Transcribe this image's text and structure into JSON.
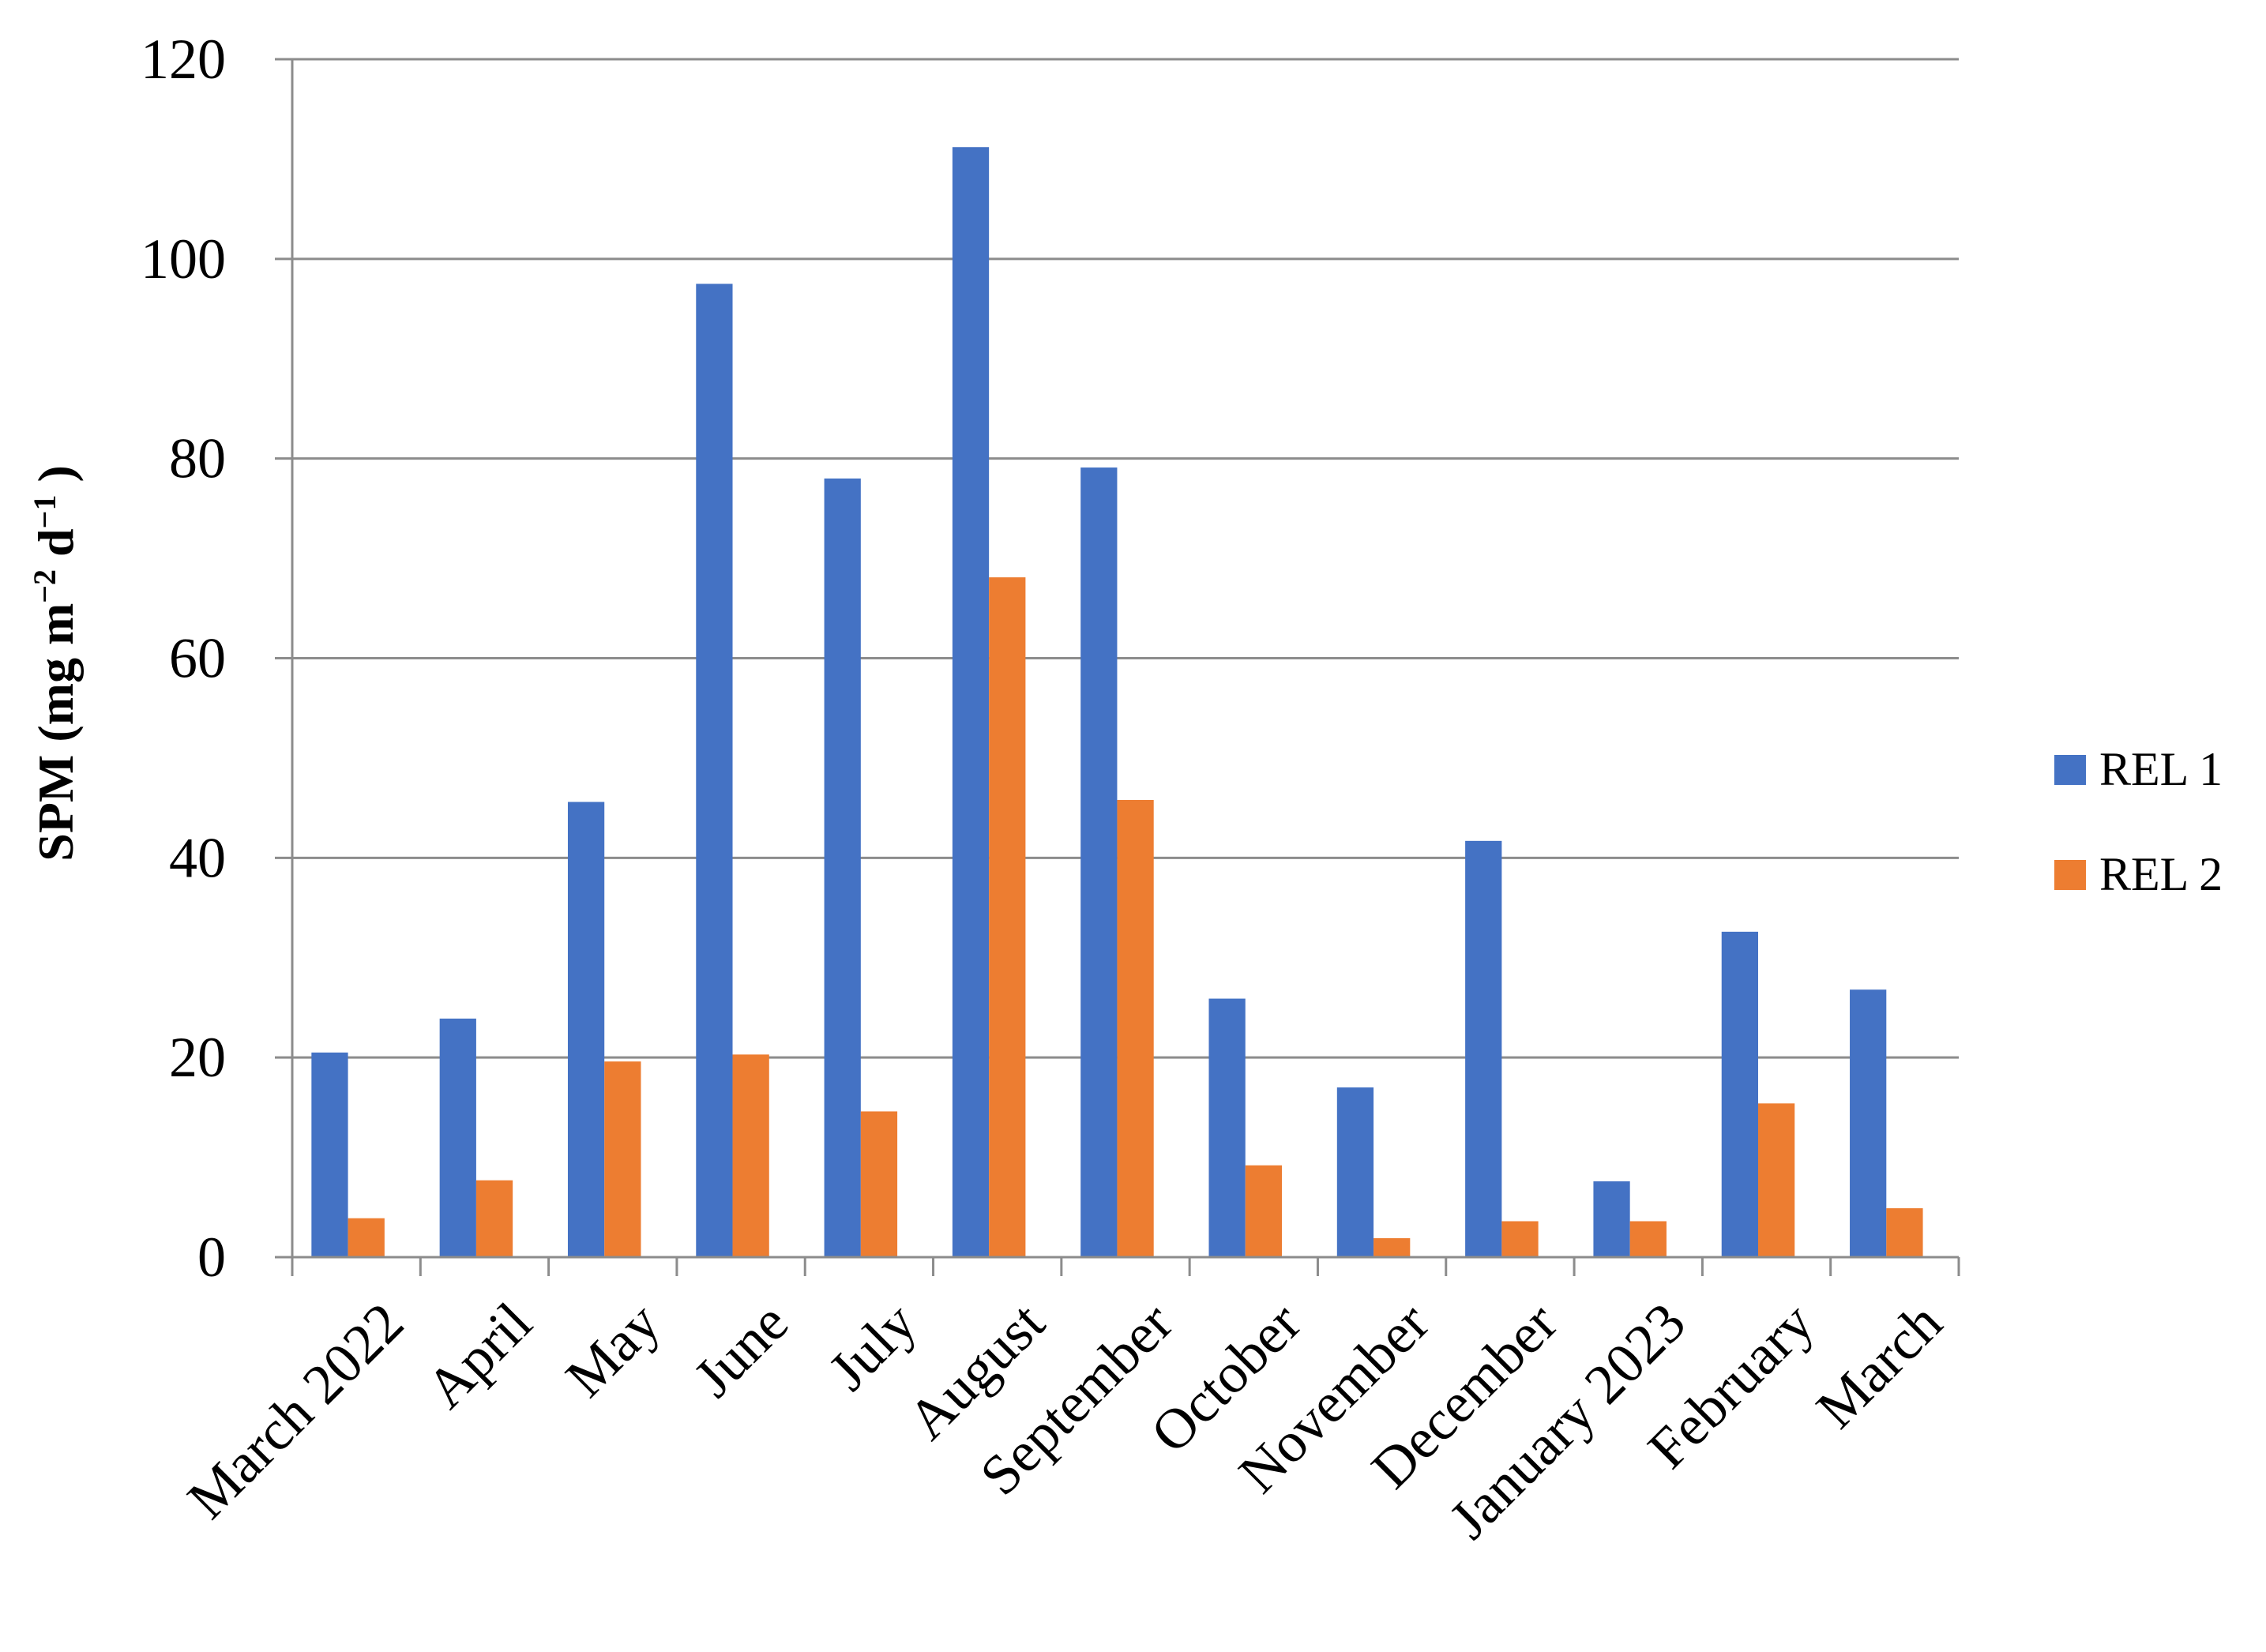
{
  "chart_data": {
    "type": "bar",
    "categories": [
      "March 2022",
      "April",
      "May",
      "June",
      "July",
      "August",
      "September",
      "October",
      "November",
      "December",
      "January 2023",
      "February",
      "March"
    ],
    "series": [
      {
        "name": "REL 1",
        "color": "#4472C4",
        "values": [
          20.5,
          23.9,
          45.6,
          97.5,
          78.0,
          111.2,
          79.1,
          25.9,
          17.0,
          41.7,
          7.6,
          32.6,
          26.8
        ]
      },
      {
        "name": "REL 2",
        "color": "#ED7D31",
        "values": [
          3.9,
          7.7,
          19.6,
          20.3,
          14.6,
          68.1,
          45.8,
          9.2,
          1.9,
          3.6,
          3.6,
          15.4,
          4.9
        ]
      }
    ],
    "yticks": [
      "0",
      "20",
      "40",
      "60",
      "80",
      "100",
      "120"
    ],
    "ylim": [
      0,
      120
    ],
    "ylabel": {
      "main": "SPM (mg m",
      "exp1": "−2",
      "mid": " d",
      "exp2": "−1",
      "end": " )"
    },
    "grid": true,
    "legend_position": "right"
  }
}
